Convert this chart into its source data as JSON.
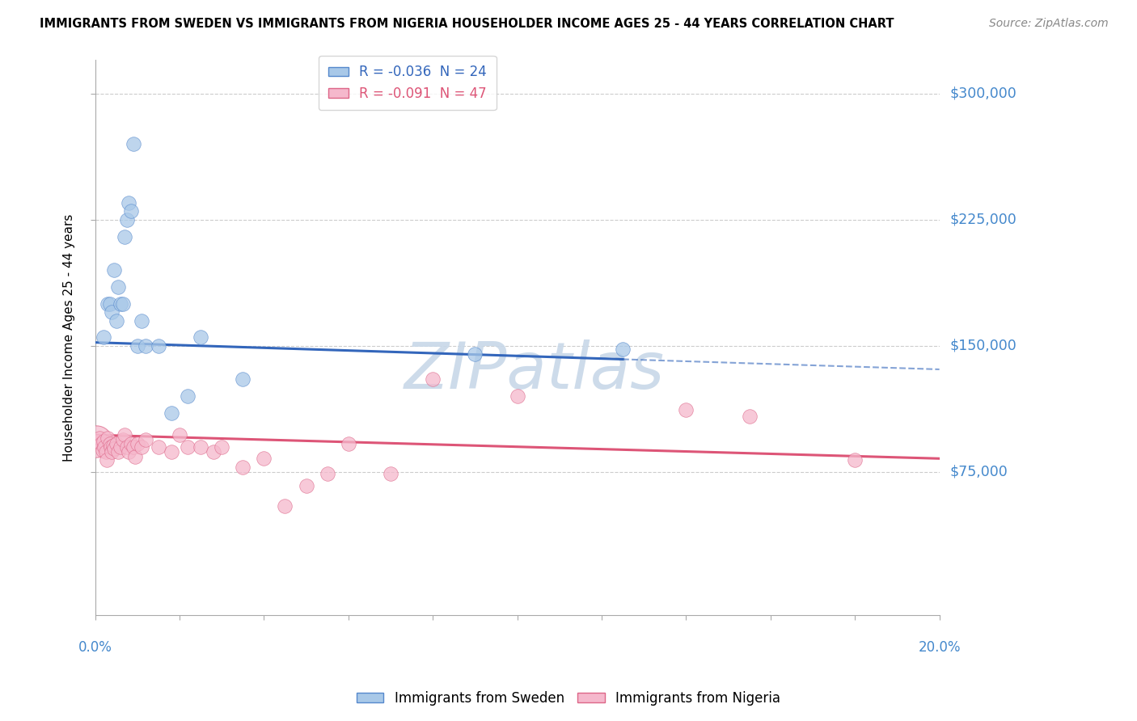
{
  "title": "IMMIGRANTS FROM SWEDEN VS IMMIGRANTS FROM NIGERIA HOUSEHOLDER INCOME AGES 25 - 44 YEARS CORRELATION CHART",
  "source": "Source: ZipAtlas.com",
  "ylabel": "Householder Income Ages 25 - 44 years",
  "ytick_values": [
    75000,
    150000,
    225000,
    300000
  ],
  "ytick_labels": [
    "$75,000",
    "$150,000",
    "$225,000",
    "$300,000"
  ],
  "xlim": [
    0.0,
    20.0
  ],
  "ylim": [
    -10000,
    320000
  ],
  "sweden_R": -0.036,
  "sweden_N": 24,
  "nigeria_R": -0.091,
  "nigeria_N": 47,
  "sweden_color": "#a8c8e8",
  "nigeria_color": "#f5b8cc",
  "sweden_edge_color": "#5588cc",
  "nigeria_edge_color": "#dd6688",
  "sweden_line_color": "#3366bb",
  "nigeria_line_color": "#dd5577",
  "grid_color": "#cccccc",
  "watermark_color": "#c8d8e8",
  "sweden_line_solid_end": 12.5,
  "nigeria_line_solid_end": 20.0,
  "sweden_scatter_x": [
    0.2,
    0.3,
    0.35,
    0.4,
    0.45,
    0.5,
    0.55,
    0.6,
    0.65,
    0.7,
    0.75,
    0.8,
    0.85,
    0.9,
    1.0,
    1.1,
    1.2,
    1.5,
    1.8,
    2.2,
    2.5,
    3.5,
    9.0,
    12.5
  ],
  "sweden_scatter_y": [
    155000,
    175000,
    175000,
    170000,
    195000,
    165000,
    185000,
    175000,
    175000,
    215000,
    225000,
    235000,
    230000,
    270000,
    150000,
    165000,
    150000,
    150000,
    110000,
    120000,
    155000,
    130000,
    145000,
    148000
  ],
  "nigeria_scatter_x": [
    0.05,
    0.1,
    0.15,
    0.18,
    0.2,
    0.22,
    0.25,
    0.28,
    0.3,
    0.35,
    0.38,
    0.4,
    0.42,
    0.45,
    0.5,
    0.55,
    0.6,
    0.65,
    0.7,
    0.75,
    0.8,
    0.85,
    0.9,
    0.95,
    1.0,
    1.1,
    1.2,
    1.5,
    1.8,
    2.0,
    2.2,
    2.5,
    2.8,
    3.0,
    3.5,
    4.0,
    4.5,
    5.0,
    5.5,
    6.0,
    7.0,
    8.0,
    10.0,
    14.0,
    15.5,
    18.0
  ],
  "nigeria_scatter_y": [
    93000,
    95000,
    92000,
    88000,
    93000,
    90000,
    87000,
    82000,
    95000,
    92000,
    90000,
    87000,
    91000,
    89000,
    92000,
    87000,
    90000,
    94000,
    97000,
    90000,
    87000,
    92000,
    90000,
    84000,
    92000,
    90000,
    94000,
    90000,
    87000,
    97000,
    90000,
    90000,
    87000,
    90000,
    78000,
    83000,
    55000,
    67000,
    74000,
    92000,
    74000,
    130000,
    120000,
    112000,
    108000,
    82000
  ],
  "nigeria_large_x": [
    0.02
  ],
  "nigeria_large_y": [
    93000
  ],
  "nigeria_large_size": 800
}
